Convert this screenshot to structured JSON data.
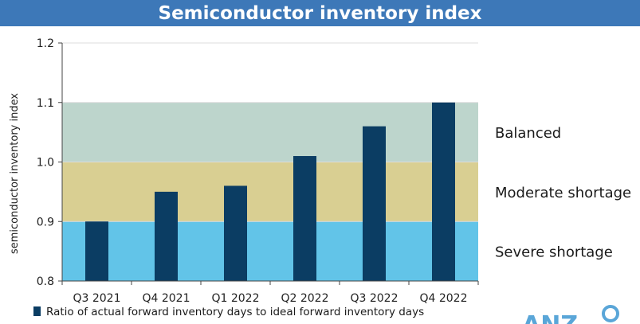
{
  "header": {
    "title": "Semiconductor inventory index"
  },
  "chart_data": {
    "type": "bar",
    "title": "Semiconductor inventory index",
    "xlabel": "",
    "ylabel": "semiconductor inventory index",
    "ylim": [
      0.8,
      1.2
    ],
    "yticks": [
      0.8,
      0.9,
      1.0,
      1.1,
      1.2
    ],
    "ytick_labels": [
      "0.8",
      "0.9",
      "1.0",
      "1.1",
      "1.2"
    ],
    "categories": [
      "Q3 2021",
      "Q4 2021",
      "Q1 2022",
      "Q2 2022",
      "Q3 2022",
      "Q4 2022"
    ],
    "series": [
      {
        "name": "Ratio of actual forward inventory days to ideal forward inventory days",
        "values": [
          0.9,
          0.95,
          0.96,
          1.01,
          1.06,
          1.1
        ],
        "color": "#0b3d63"
      }
    ],
    "bands": [
      {
        "label": "Severe shortage",
        "from": 0.8,
        "to": 0.9,
        "color": "#62c4e8"
      },
      {
        "label": "Moderate shortage",
        "from": 0.9,
        "to": 1.0,
        "color": "#d9cf92"
      },
      {
        "label": "Balanced",
        "from": 1.0,
        "to": 1.1,
        "color": "#bdd5cc"
      }
    ],
    "legend": {
      "position": "bottom",
      "label": "Ratio of actual forward inventory days to ideal forward inventory days"
    }
  },
  "logo": {
    "text": "ANZ",
    "color": "#5aa6d8"
  }
}
